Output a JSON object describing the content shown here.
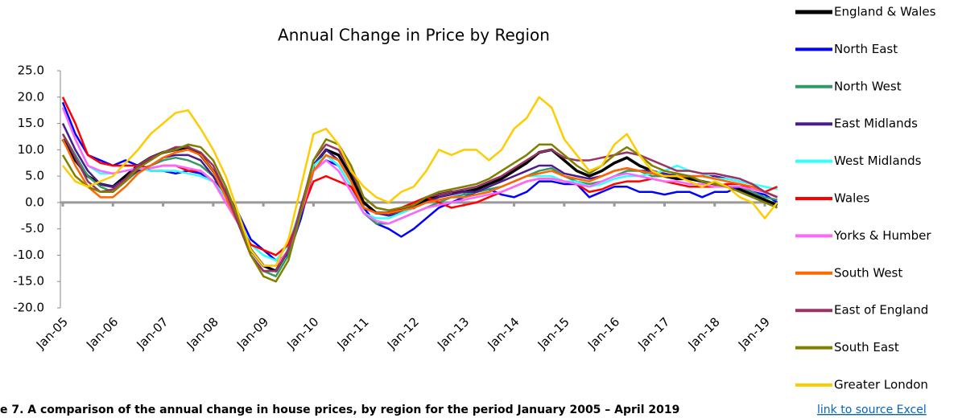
{
  "chart_data": {
    "type": "line",
    "title": "Annual Change in Price by Region",
    "categories": [
      "Jan-05",
      null,
      null,
      null,
      "Jan-06",
      null,
      null,
      null,
      "Jan-07",
      null,
      null,
      null,
      "Jan-08",
      null,
      null,
      null,
      "Jan-09",
      null,
      null,
      null,
      "Jan-10",
      null,
      null,
      null,
      "Jan-11",
      null,
      null,
      null,
      "Jan-12",
      null,
      null,
      null,
      "Jan-13",
      null,
      null,
      null,
      "Jan-14",
      null,
      null,
      null,
      "Jan-15",
      null,
      null,
      null,
      "Jan-16",
      null,
      null,
      null,
      "Jan-17",
      null,
      null,
      null,
      "Jan-18",
      null,
      null,
      null,
      "Jan-19",
      null
    ],
    "ylim": [
      -20,
      25
    ],
    "yticks": [
      {
        "value": 25,
        "label": "25.0"
      },
      {
        "value": 20,
        "label": "20.0"
      },
      {
        "value": 15,
        "label": "15.0"
      },
      {
        "value": 10,
        "label": "10.0"
      },
      {
        "value": 5,
        "label": "5.0"
      },
      {
        "value": 0,
        "label": "0.0"
      },
      {
        "value": -5,
        "label": "-5.0"
      },
      {
        "value": -10,
        "label": "-10.0"
      },
      {
        "value": -15,
        "label": "-15.0"
      },
      {
        "value": -20,
        "label": "-20.0"
      }
    ],
    "grid": false,
    "legend": "right",
    "series": [
      {
        "name": "England & Wales",
        "color": "#000000",
        "values": [
          12,
          8,
          5,
          3.5,
          3,
          5,
          7,
          8.5,
          9.5,
          10,
          10.5,
          9,
          6,
          2,
          -3,
          -9,
          -12,
          -13,
          -9,
          -1,
          7,
          10,
          9,
          5,
          0,
          -2,
          -2,
          -1.5,
          -1,
          0.5,
          1.5,
          2,
          2,
          2.5,
          3.5,
          4.5,
          6,
          7.5,
          9.5,
          10,
          8,
          6,
          5,
          6,
          7.5,
          8.5,
          7,
          6,
          5,
          4.5,
          4.5,
          4,
          3.5,
          3,
          2.5,
          1.5,
          0.5,
          -0.5
        ]
      },
      {
        "name": "North East",
        "color": "#0000ff",
        "values": [
          19,
          13,
          9,
          8,
          7,
          8,
          7,
          6,
          6,
          5.5,
          6,
          5.5,
          4,
          2,
          -2,
          -7,
          -9,
          -11,
          -10,
          -3,
          6,
          8,
          7,
          3,
          -1,
          -4,
          -5,
          -6.5,
          -5,
          -3,
          -1,
          0,
          1,
          2,
          2.5,
          1.5,
          1,
          2,
          4,
          4,
          3.5,
          3.5,
          1,
          2,
          3,
          3,
          2,
          2,
          1.5,
          2,
          2,
          1,
          2,
          2,
          3,
          2,
          1.5,
          0
        ]
      },
      {
        "name": "North West",
        "color": "#339966",
        "values": [
          13,
          9,
          5,
          3,
          2,
          4,
          6,
          7,
          8,
          8.5,
          8,
          7,
          5,
          1,
          -4,
          -10,
          -13,
          -14,
          -10,
          -2,
          6,
          9,
          7,
          3,
          -2,
          -4,
          -4,
          -3,
          -2,
          -1,
          0,
          1,
          1.5,
          2,
          2.5,
          3,
          4,
          5,
          6,
          6.5,
          5,
          4,
          3.5,
          4,
          5,
          6,
          6,
          5,
          5,
          5.5,
          5,
          4,
          3.5,
          3,
          3,
          2,
          1,
          0.5
        ]
      },
      {
        "name": "East Midlands",
        "color": "#4b1c8c",
        "values": [
          15,
          10,
          6,
          3.5,
          3,
          4.5,
          6,
          7,
          8.5,
          9,
          9,
          8,
          5,
          1,
          -4,
          -10,
          -13,
          -13,
          -9,
          -1,
          7,
          10,
          8,
          4,
          -1,
          -2,
          -2.5,
          -2,
          -1,
          0,
          1,
          1.5,
          2,
          2,
          3,
          4,
          5,
          6,
          7,
          7,
          5.5,
          5,
          4.5,
          5,
          6,
          6.5,
          6,
          6,
          5.5,
          5,
          5,
          5,
          5,
          4.5,
          4,
          3.5,
          2,
          1
        ]
      },
      {
        "name": "West Midlands",
        "color": "#33ffff",
        "values": [
          18,
          12,
          7,
          5.5,
          5.5,
          6,
          6.5,
          6,
          6,
          6,
          5.5,
          5,
          4,
          1,
          -3,
          -8,
          -10,
          -11,
          -8,
          -1,
          7,
          9,
          7,
          3,
          -2,
          -3,
          -3,
          -2,
          -1,
          0,
          0.5,
          1,
          1,
          1.5,
          2,
          3,
          4,
          5,
          5,
          5,
          4,
          4,
          3,
          3.5,
          4.5,
          5,
          5,
          5.5,
          6,
          7,
          6,
          5.5,
          4.5,
          4.5,
          4,
          3.5,
          3,
          2.5
        ]
      },
      {
        "name": "Wales",
        "color": "#ff0000",
        "values": [
          20,
          15,
          9,
          7.5,
          7,
          7,
          7,
          6.5,
          7,
          7,
          6,
          6,
          4,
          0,
          -4,
          -8,
          -9,
          -10,
          -8,
          -2,
          4,
          5,
          4,
          3,
          -1,
          -2,
          -2,
          -1,
          0,
          1,
          0,
          -1,
          -0.5,
          0,
          1,
          2,
          3,
          4,
          4.5,
          4.5,
          4,
          3.5,
          2,
          2.5,
          3.5,
          4,
          4,
          4.5,
          4,
          3.5,
          3,
          3,
          3,
          3.5,
          3.5,
          2.5,
          2,
          3
        ]
      },
      {
        "name": "Yorks & Humber",
        "color": "#ff66ff",
        "values": [
          18,
          12,
          7,
          6,
          5.5,
          6,
          6.5,
          6.5,
          7,
          7,
          6.5,
          6,
          4,
          0,
          -4,
          -9,
          -12,
          -12,
          -9,
          -2,
          6,
          8,
          6,
          2,
          -2,
          -3.5,
          -4,
          -3,
          -2,
          -1,
          -0.5,
          0,
          0.5,
          1,
          1.5,
          2,
          3,
          4,
          4.5,
          4.5,
          4,
          3.5,
          3,
          4,
          5,
          5.5,
          5,
          4.5,
          4,
          4,
          3.5,
          3.5,
          3,
          3,
          3,
          2.5,
          2,
          1
        ]
      },
      {
        "name": "South West",
        "color": "#ff6600",
        "values": [
          12,
          7,
          3,
          1,
          1,
          3,
          5.5,
          7,
          8.5,
          9.5,
          10,
          9,
          6,
          1,
          -4,
          -10,
          -13,
          -13,
          -9,
          -1,
          6,
          9,
          8,
          4,
          -1,
          -2,
          -2,
          -1.5,
          -1,
          0,
          0.5,
          1,
          1,
          1.5,
          2,
          3,
          4,
          5,
          5.5,
          6,
          5,
          4.5,
          4,
          5,
          6,
          6.5,
          6,
          5.5,
          5,
          5,
          5,
          5,
          4.5,
          4,
          3.5,
          3,
          2,
          1
        ]
      },
      {
        "name": "East of England",
        "color": "#993366",
        "values": [
          13,
          8.5,
          4,
          2,
          2.5,
          4.5,
          7,
          8.5,
          9.5,
          10.5,
          10.5,
          9.5,
          7,
          2,
          -4,
          -10,
          -13,
          -13,
          -9,
          -1,
          8,
          11,
          10,
          6,
          1,
          -1,
          -1.5,
          -1,
          -0.5,
          1,
          1.5,
          2,
          2.5,
          3,
          4,
          5,
          6.5,
          8,
          9.5,
          10,
          8.5,
          8,
          8,
          8.5,
          9,
          9.5,
          9,
          8,
          7,
          6,
          6,
          5.5,
          5.5,
          5,
          4.5,
          3.5,
          2,
          1
        ]
      },
      {
        "name": "South East",
        "color": "#808000",
        "values": [
          9,
          5,
          3,
          2,
          2,
          4,
          6.5,
          8,
          9.5,
          10,
          11,
          10.5,
          8,
          3,
          -3,
          -10,
          -14,
          -15,
          -11,
          -2,
          8,
          12,
          11,
          7,
          1,
          -1,
          -1.5,
          -1,
          -0.5,
          1,
          2,
          2.5,
          3,
          3.5,
          4.5,
          6,
          7.5,
          9,
          11,
          11,
          9,
          7,
          5.5,
          7,
          9,
          10.5,
          9,
          7,
          6,
          5.5,
          5,
          4,
          3.5,
          3,
          2,
          1,
          0,
          -1
        ]
      },
      {
        "name": "Greater London",
        "color": "#ffcc00",
        "values": [
          7,
          4,
          3,
          4,
          5,
          7.5,
          10,
          13,
          15,
          17,
          17.5,
          14,
          10,
          5,
          -2,
          -9,
          -12,
          -12,
          -7,
          3,
          13,
          14,
          11,
          6,
          3,
          1,
          0,
          2,
          3,
          6,
          10,
          9,
          10,
          10,
          8,
          10,
          14,
          16,
          20,
          18,
          12,
          9,
          6,
          7,
          11,
          13,
          9,
          6,
          5,
          5,
          4,
          3,
          4,
          3,
          1,
          0,
          -3,
          0
        ]
      }
    ]
  },
  "caption": "e 7.  A comparison of the annual change in house prices, by region for the period January 2005 – April 2019",
  "link": "link to source Excel"
}
